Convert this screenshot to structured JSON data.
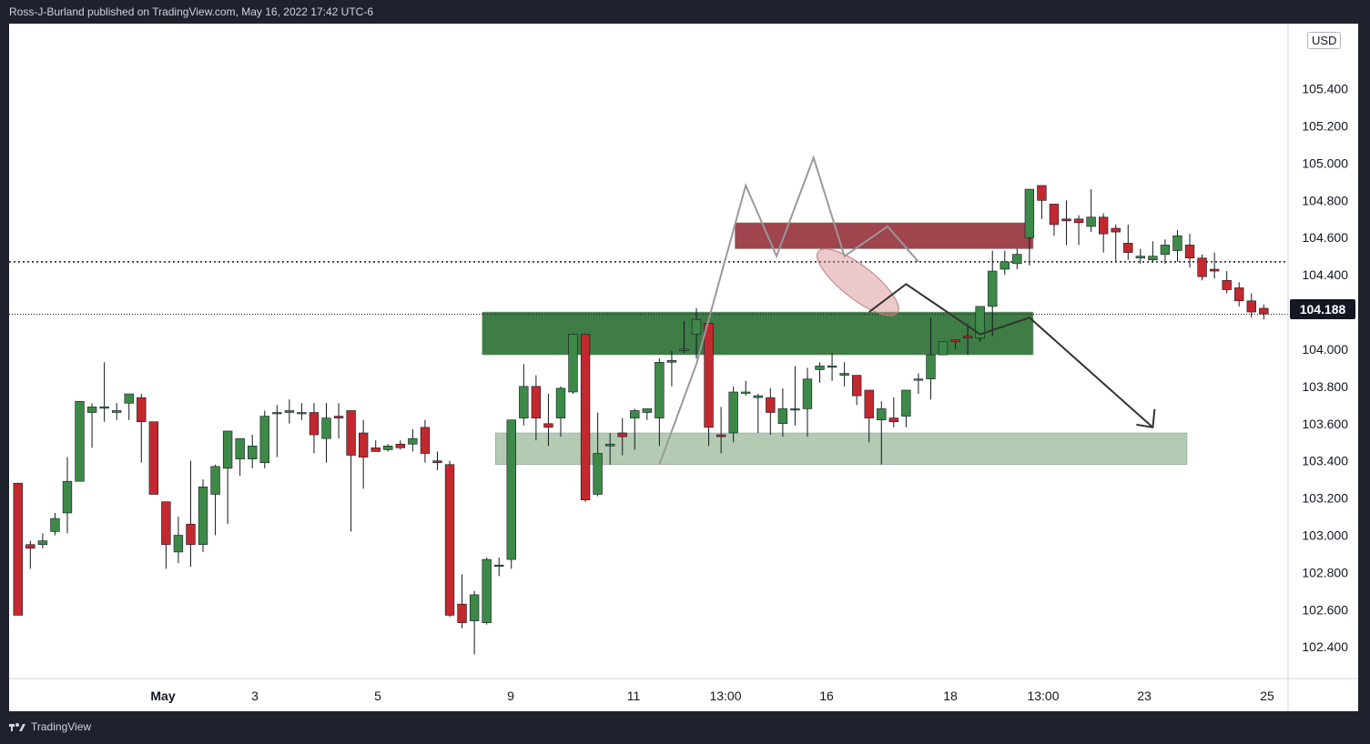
{
  "header": {
    "published": "Ross-J-Burland published on TradingView.com, May 16, 2022 17:42 UTC-6"
  },
  "footer": {
    "brand": "TradingView"
  },
  "colors": {
    "up": "#3d8a48",
    "down": "#c4282f",
    "resistance_zone": "#9b3a44",
    "support_zone": "#3e7d45",
    "target_zone": "#b3cbb3",
    "projection": "#333333",
    "pattern": "#999999",
    "highlight_ellipse": "#d48a8f"
  },
  "chart_data": {
    "type": "candlestick",
    "currency": "USD",
    "current_price": "104.188",
    "current_price_value": 104.188,
    "y_range": [
      102.23,
      105.75
    ],
    "y_ticks": [
      "102.400",
      "102.600",
      "102.800",
      "103.000",
      "103.200",
      "103.400",
      "103.600",
      "103.800",
      "104.000",
      "104.200",
      "104.400",
      "104.600",
      "104.800",
      "105.000",
      "105.200",
      "105.400"
    ],
    "x_labels": [
      "May",
      "3",
      "5",
      "9",
      "11",
      "13:00",
      "16",
      "18",
      "13:00",
      "23",
      "25"
    ],
    "horizontal_lines": [
      {
        "name": "neckline",
        "price": 104.47,
        "style": "dotted"
      },
      {
        "name": "current",
        "price": 104.188,
        "style": "dotted"
      }
    ],
    "zones": [
      {
        "name": "resistance",
        "top": 104.68,
        "bottom": 104.54
      },
      {
        "name": "support",
        "top": 104.2,
        "bottom": 103.97
      },
      {
        "name": "target",
        "top": 103.55,
        "bottom": 103.38
      }
    ],
    "candles": [
      [
        103.28,
        102.57,
        103.28,
        102.57
      ],
      [
        102.95,
        102.93,
        102.97,
        102.82
      ],
      [
        102.95,
        102.97,
        103.01,
        102.93
      ],
      [
        103.02,
        103.09,
        103.12,
        103.0
      ],
      [
        103.12,
        103.29,
        103.42,
        103.01
      ],
      [
        103.29,
        103.72,
        103.71,
        103.29
      ],
      [
        103.66,
        103.69,
        103.71,
        103.47
      ],
      [
        103.69,
        103.69,
        103.93,
        103.61
      ],
      [
        103.66,
        103.67,
        103.71,
        103.62
      ],
      [
        103.71,
        103.76,
        103.76,
        103.62
      ],
      [
        103.74,
        103.61,
        103.76,
        103.39
      ],
      [
        103.61,
        103.22,
        103.61,
        103.24
      ],
      [
        103.18,
        102.95,
        103.18,
        102.82
      ],
      [
        102.91,
        103.0,
        103.1,
        102.85
      ],
      [
        103.06,
        102.95,
        103.4,
        102.83
      ],
      [
        102.95,
        103.26,
        103.3,
        102.91
      ],
      [
        103.22,
        103.37,
        103.38,
        103.0
      ],
      [
        103.36,
        103.56,
        103.56,
        103.06
      ],
      [
        103.41,
        103.52,
        103.5,
        103.32
      ],
      [
        103.41,
        103.48,
        103.54,
        103.36
      ],
      [
        103.39,
        103.64,
        103.67,
        103.36
      ],
      [
        103.66,
        103.66,
        103.7,
        103.42
      ],
      [
        103.66,
        103.67,
        103.73,
        103.6
      ],
      [
        103.66,
        103.66,
        103.71,
        103.62
      ],
      [
        103.66,
        103.54,
        103.71,
        103.44
      ],
      [
        103.52,
        103.63,
        103.71,
        103.39
      ],
      [
        103.64,
        103.63,
        103.71,
        103.52
      ],
      [
        103.67,
        103.43,
        103.66,
        103.02
      ],
      [
        103.55,
        103.42,
        103.62,
        103.25
      ],
      [
        103.47,
        103.45,
        103.51,
        103.46
      ],
      [
        103.46,
        103.48,
        103.49,
        103.45
      ],
      [
        103.49,
        103.47,
        103.51,
        103.46
      ],
      [
        103.49,
        103.52,
        103.57,
        103.45
      ],
      [
        103.58,
        103.44,
        103.62,
        103.39
      ],
      [
        103.4,
        103.39,
        103.45,
        103.35
      ],
      [
        103.38,
        102.57,
        103.4,
        102.56
      ],
      [
        102.63,
        102.53,
        102.79,
        102.5
      ],
      [
        102.54,
        102.68,
        102.7,
        102.36
      ],
      [
        102.53,
        102.87,
        102.88,
        102.52
      ],
      [
        102.84,
        102.84,
        102.88,
        102.78
      ],
      [
        102.87,
        103.62,
        103.62,
        102.82
      ],
      [
        103.63,
        103.8,
        103.92,
        103.59
      ],
      [
        103.8,
        103.63,
        103.86,
        103.51
      ],
      [
        103.6,
        103.58,
        103.76,
        103.48
      ],
      [
        103.63,
        103.79,
        103.8,
        103.53
      ],
      [
        103.77,
        104.08,
        104.08,
        103.76
      ],
      [
        104.08,
        103.19,
        104.08,
        103.18
      ],
      [
        103.22,
        103.44,
        103.66,
        103.21
      ],
      [
        103.48,
        103.49,
        103.55,
        103.38
      ],
      [
        103.55,
        103.53,
        103.63,
        103.43
      ],
      [
        103.63,
        103.67,
        103.68,
        103.46
      ],
      [
        103.66,
        103.68,
        103.68,
        103.62
      ],
      [
        103.63,
        103.93,
        103.95,
        103.48
      ],
      [
        103.93,
        103.94,
        103.99,
        103.8
      ],
      [
        104.0,
        104.0,
        104.15,
        103.98
      ],
      [
        104.08,
        104.16,
        104.22,
        103.95
      ],
      [
        104.14,
        103.58,
        104.14,
        103.48
      ],
      [
        103.54,
        103.53,
        103.69,
        103.44
      ],
      [
        103.55,
        103.77,
        103.8,
        103.5
      ],
      [
        103.77,
        103.77,
        103.83,
        103.75
      ],
      [
        103.74,
        103.75,
        103.76,
        103.55
      ],
      [
        103.74,
        103.66,
        103.79,
        103.54
      ],
      [
        103.6,
        103.68,
        103.79,
        103.53
      ],
      [
        103.68,
        103.68,
        103.91,
        103.59
      ],
      [
        103.68,
        103.84,
        103.9,
        103.53
      ],
      [
        103.89,
        103.91,
        103.93,
        103.82
      ],
      [
        103.91,
        103.91,
        103.98,
        103.83
      ],
      [
        103.86,
        103.87,
        103.93,
        103.8
      ],
      [
        103.86,
        103.75,
        103.84,
        103.7
      ],
      [
        103.78,
        103.63,
        103.78,
        103.5
      ],
      [
        103.62,
        103.68,
        103.72,
        103.38
      ],
      [
        103.63,
        103.61,
        103.74,
        103.58
      ],
      [
        103.64,
        103.78,
        103.78,
        103.58
      ],
      [
        103.84,
        103.84,
        103.87,
        103.76
      ],
      [
        103.84,
        103.97,
        104.17,
        103.73
      ],
      [
        103.97,
        104.04,
        104.04,
        103.99
      ],
      [
        104.05,
        104.04,
        104.04,
        104.0
      ],
      [
        104.07,
        104.06,
        104.14,
        103.97
      ],
      [
        104.06,
        104.23,
        104.23,
        104.04
      ],
      [
        104.23,
        104.42,
        104.53,
        104.07
      ],
      [
        104.43,
        104.47,
        104.53,
        104.4
      ],
      [
        104.46,
        104.51,
        104.54,
        104.43
      ],
      [
        104.6,
        104.86,
        104.86,
        104.45
      ],
      [
        104.88,
        104.8,
        104.88,
        104.7
      ],
      [
        104.78,
        104.67,
        104.77,
        104.61
      ],
      [
        104.7,
        104.69,
        104.8,
        104.56
      ],
      [
        104.7,
        104.68,
        104.72,
        104.56
      ],
      [
        104.66,
        104.71,
        104.86,
        104.63
      ],
      [
        104.71,
        104.62,
        104.73,
        104.52
      ],
      [
        104.65,
        104.63,
        104.67,
        104.47
      ],
      [
        104.57,
        104.52,
        104.67,
        104.48
      ],
      [
        104.49,
        104.5,
        104.54,
        104.46
      ],
      [
        104.48,
        104.5,
        104.58,
        104.47
      ],
      [
        104.51,
        104.56,
        104.59,
        104.46
      ],
      [
        104.53,
        104.61,
        104.64,
        104.47
      ],
      [
        104.56,
        104.49,
        104.62,
        104.44
      ],
      [
        104.49,
        104.39,
        104.51,
        104.37
      ],
      [
        104.43,
        104.42,
        104.52,
        104.38
      ],
      [
        104.37,
        104.32,
        104.42,
        104.3
      ],
      [
        104.33,
        104.26,
        104.36,
        104.23
      ],
      [
        104.26,
        104.2,
        104.3,
        104.17
      ],
      [
        104.22,
        104.19,
        104.24,
        104.16
      ]
    ],
    "pattern_path": [
      [
        15,
        103.38
      ],
      [
        18,
        103.92
      ],
      [
        22,
        104.88
      ],
      [
        24.5,
        104.5
      ],
      [
        27.5,
        105.03
      ],
      [
        30,
        104.5
      ],
      [
        33.5,
        104.66
      ],
      [
        36,
        104.47
      ]
    ],
    "projection_path": [
      [
        50,
        104.2
      ],
      [
        53,
        104.35
      ],
      [
        59,
        104.08
      ],
      [
        63,
        104.17
      ],
      [
        73,
        103.58
      ],
      [
        73.6,
        103.68
      ]
    ],
    "time_layout": {
      "x_start_bar": 0,
      "x_end_bar": 104,
      "bars_visible": 104
    }
  }
}
